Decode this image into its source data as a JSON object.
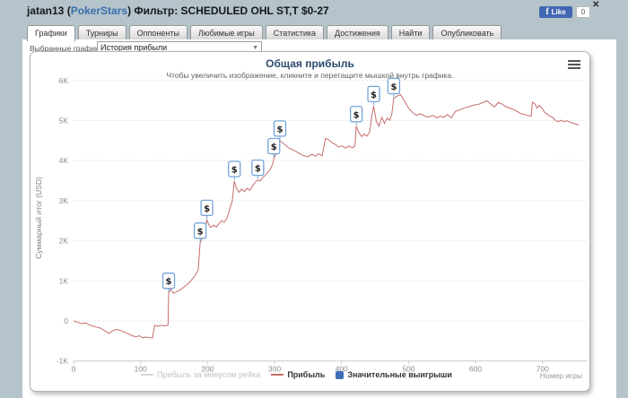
{
  "header": {
    "player": "jatan13",
    "paren_open": " (",
    "site": "PokerStars",
    "paren_close": ") ",
    "filter_label": "Фильтр:",
    "filter_value": " SCHEDULED OHL ST,T $0-27",
    "fb_logo": "f",
    "like_label": "Like",
    "like_count": "0",
    "close_label": "✕"
  },
  "tabs": [
    {
      "label": "Графики",
      "active": true
    },
    {
      "label": "Турниры",
      "active": false
    },
    {
      "label": "Оппоненты",
      "active": false
    },
    {
      "label": "Любимые игры",
      "active": false
    },
    {
      "label": "Статистика",
      "active": false
    },
    {
      "label": "Достижения",
      "active": false
    },
    {
      "label": "Найти",
      "active": false
    },
    {
      "label": "Опубликовать",
      "active": false
    }
  ],
  "controls": {
    "graphs_label": "Выбранные графики:",
    "graph_select": "История прибыли",
    "dropdown_icon": "▼"
  },
  "chart_data": {
    "type": "line",
    "title": "Общая прибыль",
    "subtitle": "Чтобы увеличить изображение, кликните и перетащите мышкой внутрь графика.",
    "ylabel": "Суммарный итог (USD)",
    "xlabel": "Номер игры",
    "xlim": [
      0,
      766
    ],
    "ylim": [
      -1000,
      6000
    ],
    "grid": "horizontal-dotted",
    "legend_position": "bottom-center",
    "axis_color": "#c9c9c9",
    "grid_color": "#d9d9d9",
    "tick_label_color": "#8c8c8c",
    "xticks": [
      {
        "v": 0,
        "label": "0"
      },
      {
        "v": 100,
        "label": "100"
      },
      {
        "v": 200,
        "label": "200"
      },
      {
        "v": 300,
        "label": "300"
      },
      {
        "v": 400,
        "label": "400"
      },
      {
        "v": 500,
        "label": "500"
      },
      {
        "v": 600,
        "label": "600"
      },
      {
        "v": 700,
        "label": "700"
      }
    ],
    "yticks": [
      {
        "v": -1000,
        "label": "-1K"
      },
      {
        "v": 0,
        "label": "0"
      },
      {
        "v": 1000,
        "label": "1K"
      },
      {
        "v": 2000,
        "label": "2K"
      },
      {
        "v": 3000,
        "label": "3K"
      },
      {
        "v": 4000,
        "label": "4K"
      },
      {
        "v": 5000,
        "label": "5K"
      },
      {
        "v": 6000,
        "label": "6K"
      }
    ],
    "legend": [
      {
        "label": "Прибыль за минусом рейка",
        "type": "line",
        "color": "#d4d4d4",
        "disabled": true
      },
      {
        "label": "Прибыль",
        "type": "line",
        "color": "#c76d6d",
        "disabled": false
      },
      {
        "label": "Значительные выигрыши",
        "type": "flag",
        "color": "#3f6eb5",
        "disabled": false
      }
    ],
    "series": [
      {
        "name": "Прибыль",
        "color": "#c76d6d",
        "points": [
          [
            0,
            0
          ],
          [
            6,
            -30
          ],
          [
            12,
            -70
          ],
          [
            18,
            -50
          ],
          [
            25,
            -110
          ],
          [
            33,
            -150
          ],
          [
            40,
            -180
          ],
          [
            47,
            -250
          ],
          [
            53,
            -310
          ],
          [
            59,
            -240
          ],
          [
            65,
            -210
          ],
          [
            72,
            -250
          ],
          [
            79,
            -300
          ],
          [
            86,
            -360
          ],
          [
            93,
            -400
          ],
          [
            98,
            -370
          ],
          [
            103,
            -420
          ],
          [
            108,
            -400
          ],
          [
            113,
            -415
          ],
          [
            118,
            -420
          ],
          [
            121,
            -110
          ],
          [
            126,
            -130
          ],
          [
            131,
            -110
          ],
          [
            136,
            -125
          ],
          [
            141,
            -105
          ],
          [
            142,
            700
          ],
          [
            145,
            790
          ],
          [
            149,
            690
          ],
          [
            153,
            720
          ],
          [
            158,
            760
          ],
          [
            163,
            820
          ],
          [
            168,
            890
          ],
          [
            173,
            960
          ],
          [
            178,
            1060
          ],
          [
            182,
            1150
          ],
          [
            186,
            1270
          ],
          [
            189,
            1950
          ],
          [
            192,
            2070
          ],
          [
            195,
            2220
          ],
          [
            197,
            2350
          ],
          [
            199,
            2520
          ],
          [
            202,
            2400
          ],
          [
            205,
            2330
          ],
          [
            209,
            2390
          ],
          [
            213,
            2340
          ],
          [
            217,
            2430
          ],
          [
            221,
            2500
          ],
          [
            225,
            2460
          ],
          [
            229,
            2560
          ],
          [
            233,
            2780
          ],
          [
            237,
            3010
          ],
          [
            240,
            3490
          ],
          [
            243,
            3310
          ],
          [
            247,
            3210
          ],
          [
            251,
            3290
          ],
          [
            255,
            3230
          ],
          [
            259,
            3310
          ],
          [
            263,
            3260
          ],
          [
            267,
            3360
          ],
          [
            271,
            3460
          ],
          [
            275,
            3520
          ],
          [
            278,
            3490
          ],
          [
            282,
            3570
          ],
          [
            286,
            3630
          ],
          [
            290,
            3710
          ],
          [
            294,
            3790
          ],
          [
            297,
            3910
          ],
          [
            299,
            4060
          ],
          [
            302,
            4160
          ],
          [
            305,
            4310
          ],
          [
            308,
            4500
          ],
          [
            311,
            4460
          ],
          [
            315,
            4400
          ],
          [
            320,
            4330
          ],
          [
            326,
            4280
          ],
          [
            332,
            4230
          ],
          [
            338,
            4170
          ],
          [
            344,
            4120
          ],
          [
            350,
            4100
          ],
          [
            356,
            4160
          ],
          [
            361,
            4110
          ],
          [
            366,
            4170
          ],
          [
            371,
            4120
          ],
          [
            376,
            4560
          ],
          [
            381,
            4520
          ],
          [
            386,
            4450
          ],
          [
            391,
            4400
          ],
          [
            396,
            4340
          ],
          [
            401,
            4370
          ],
          [
            406,
            4310
          ],
          [
            411,
            4370
          ],
          [
            416,
            4320
          ],
          [
            420,
            4360
          ],
          [
            422,
            4860
          ],
          [
            426,
            4700
          ],
          [
            430,
            4600
          ],
          [
            434,
            4660
          ],
          [
            438,
            4610
          ],
          [
            442,
            4720
          ],
          [
            445,
            5100
          ],
          [
            448,
            5360
          ],
          [
            452,
            4980
          ],
          [
            456,
            4860
          ],
          [
            460,
            5080
          ],
          [
            464,
            4930
          ],
          [
            468,
            5060
          ],
          [
            472,
            5010
          ],
          [
            475,
            5160
          ],
          [
            478,
            5560
          ],
          [
            483,
            5610
          ],
          [
            488,
            5650
          ],
          [
            494,
            5480
          ],
          [
            500,
            5310
          ],
          [
            506,
            5200
          ],
          [
            512,
            5130
          ],
          [
            518,
            5170
          ],
          [
            524,
            5110
          ],
          [
            530,
            5090
          ],
          [
            536,
            5130
          ],
          [
            542,
            5070
          ],
          [
            548,
            5110
          ],
          [
            553,
            5080
          ],
          [
            558,
            5150
          ],
          [
            564,
            5070
          ],
          [
            570,
            5230
          ],
          [
            577,
            5270
          ],
          [
            584,
            5320
          ],
          [
            591,
            5350
          ],
          [
            598,
            5390
          ],
          [
            605,
            5410
          ],
          [
            611,
            5450
          ],
          [
            617,
            5490
          ],
          [
            623,
            5410
          ],
          [
            628,
            5340
          ],
          [
            634,
            5450
          ],
          [
            640,
            5410
          ],
          [
            645,
            5350
          ],
          [
            651,
            5310
          ],
          [
            657,
            5270
          ],
          [
            662,
            5230
          ],
          [
            668,
            5170
          ],
          [
            673,
            5150
          ],
          [
            678,
            5130
          ],
          [
            683,
            5110
          ],
          [
            685,
            5460
          ],
          [
            689,
            5410
          ],
          [
            692,
            5310
          ],
          [
            695,
            5380
          ],
          [
            699,
            5310
          ],
          [
            703,
            5210
          ],
          [
            707,
            5160
          ],
          [
            711,
            5110
          ],
          [
            715,
            5080
          ],
          [
            719,
            5010
          ],
          [
            723,
            4970
          ],
          [
            728,
            5010
          ],
          [
            732,
            4970
          ],
          [
            736,
            5000
          ],
          [
            741,
            4960
          ],
          [
            746,
            4930
          ],
          [
            750,
            4910
          ],
          [
            754,
            4890
          ]
        ]
      }
    ],
    "flags": {
      "name": "Значительные выигрыши",
      "symbol": "$",
      "border_color": "#74a3d8",
      "points": [
        [
          142,
          700
        ],
        [
          189,
          1950
        ],
        [
          199,
          2520
        ],
        [
          240,
          3490
        ],
        [
          275,
          3520
        ],
        [
          299,
          4060
        ],
        [
          308,
          4500
        ],
        [
          422,
          4860
        ],
        [
          448,
          5360
        ],
        [
          478,
          5560
        ]
      ]
    }
  }
}
